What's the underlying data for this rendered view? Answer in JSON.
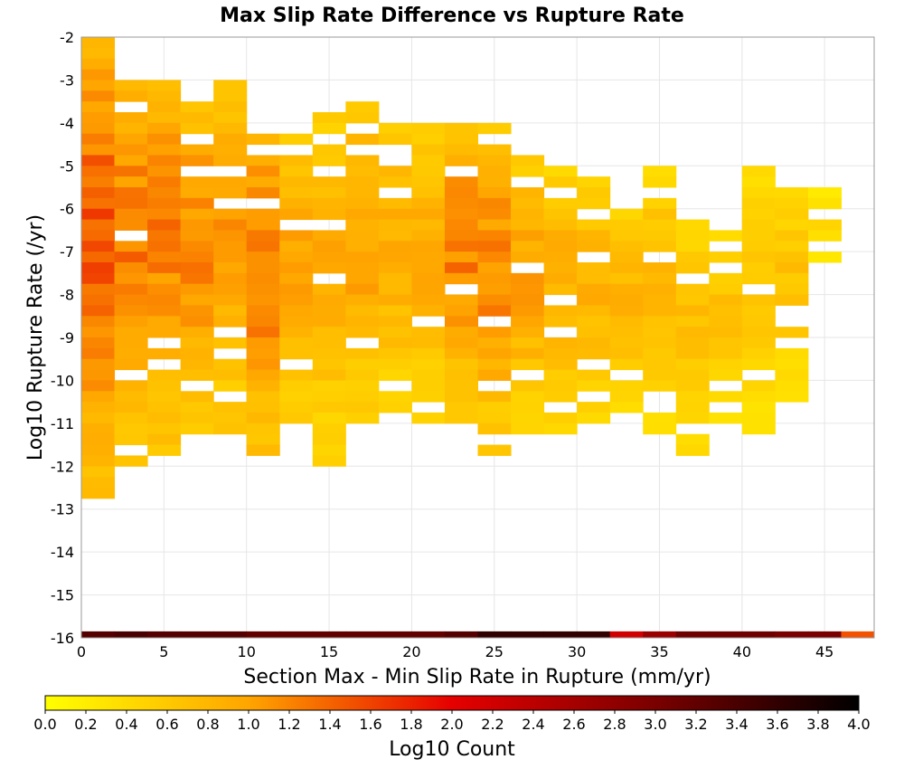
{
  "chart_data": {
    "type": "heatmap",
    "title": "Max Slip Rate Difference vs Rupture Rate",
    "xlabel": "Section Max - Min Slip Rate in Rupture (mm/yr)",
    "ylabel": "Log10 Rupture Rate (/yr)",
    "xlim": [
      0,
      48
    ],
    "ylim": [
      -16,
      -2
    ],
    "x_ticks": [
      "0",
      "5",
      "10",
      "15",
      "20",
      "25",
      "30",
      "35",
      "40",
      "45"
    ],
    "y_ticks": [
      "-2",
      "-3",
      "-4",
      "-5",
      "-6",
      "-7",
      "-8",
      "-9",
      "-10",
      "-11",
      "-12",
      "-13",
      "-14",
      "-15",
      "-16"
    ],
    "cell_size": {
      "x": 2,
      "y": 0.25
    },
    "colorbar": {
      "label": "Log10 Count",
      "range": [
        0,
        4
      ],
      "ticks": [
        "0.0",
        "0.2",
        "0.4",
        "0.6",
        "0.8",
        "1.0",
        "1.2",
        "1.4",
        "1.6",
        "1.8",
        "2.0",
        "2.2",
        "2.4",
        "2.6",
        "2.8",
        "3.0",
        "3.2",
        "3.4",
        "3.6",
        "3.8",
        "4.0"
      ],
      "stops": [
        {
          "v": 0.0,
          "color": "#ffff00"
        },
        {
          "v": 1.0,
          "color": "#ffa500"
        },
        {
          "v": 2.0,
          "color": "#e60000"
        },
        {
          "v": 3.0,
          "color": "#7a0000"
        },
        {
          "v": 4.0,
          "color": "#000000"
        }
      ]
    },
    "grid": true,
    "bottom_row": {
      "y": -16,
      "values": [
        3.3,
        3.4,
        3.3,
        3.3,
        3.3,
        3.2,
        3.2,
        3.2,
        3.2,
        3.2,
        3.2,
        3.3,
        3.6,
        3.6,
        3.6,
        3.6,
        2.2,
        2.7,
        3.1,
        3.1,
        3.1,
        3.0,
        3.0,
        1.5
      ]
    },
    "column_ranges": [
      {
        "x": 0,
        "top": -2,
        "bottom": -12.75,
        "max": 1.6
      },
      {
        "x": 2,
        "top": -3,
        "bottom": -12,
        "max": 1.45
      },
      {
        "x": 4,
        "top": -2.75,
        "bottom": -11.75,
        "max": 1.35
      },
      {
        "x": 6,
        "top": -3.25,
        "bottom": -11.25,
        "max": 1.3
      },
      {
        "x": 8,
        "top": -3,
        "bottom": -11.25,
        "max": 1.2
      },
      {
        "x": 10,
        "top": -4,
        "bottom": -11.75,
        "max": 1.45
      },
      {
        "x": 12,
        "top": -4,
        "bottom": -11.5,
        "max": 1.1
      },
      {
        "x": 14,
        "top": -3.5,
        "bottom": -12,
        "max": 1.0
      },
      {
        "x": 16,
        "top": -3.5,
        "bottom": -11,
        "max": 1.1
      },
      {
        "x": 18,
        "top": -4,
        "bottom": -11,
        "max": 1.0
      },
      {
        "x": 20,
        "top": -4,
        "bottom": -11,
        "max": 1.0
      },
      {
        "x": 22,
        "top": -4,
        "bottom": -11,
        "max": 1.35
      },
      {
        "x": 24,
        "top": -4,
        "bottom": -11.75,
        "max": 1.3
      },
      {
        "x": 26,
        "top": -4.75,
        "bottom": -11.25,
        "max": 1.1
      },
      {
        "x": 28,
        "top": -5,
        "bottom": -11.25,
        "max": 1.0
      },
      {
        "x": 30,
        "top": -5.25,
        "bottom": -11,
        "max": 0.95
      },
      {
        "x": 32,
        "top": -6,
        "bottom": -10.75,
        "max": 0.9
      },
      {
        "x": 34,
        "top": -5,
        "bottom": -11.5,
        "max": 0.85
      },
      {
        "x": 36,
        "top": -6.25,
        "bottom": -11.75,
        "max": 0.8
      },
      {
        "x": 38,
        "top": -6.5,
        "bottom": -11,
        "max": 0.75
      },
      {
        "x": 40,
        "top": -5,
        "bottom": -11.25,
        "max": 0.75
      },
      {
        "x": 42,
        "top": -5.5,
        "bottom": -10.5,
        "max": 0.75
      },
      {
        "x": 44,
        "top": -5.5,
        "bottom": -7.25,
        "max": 0.5
      }
    ]
  }
}
